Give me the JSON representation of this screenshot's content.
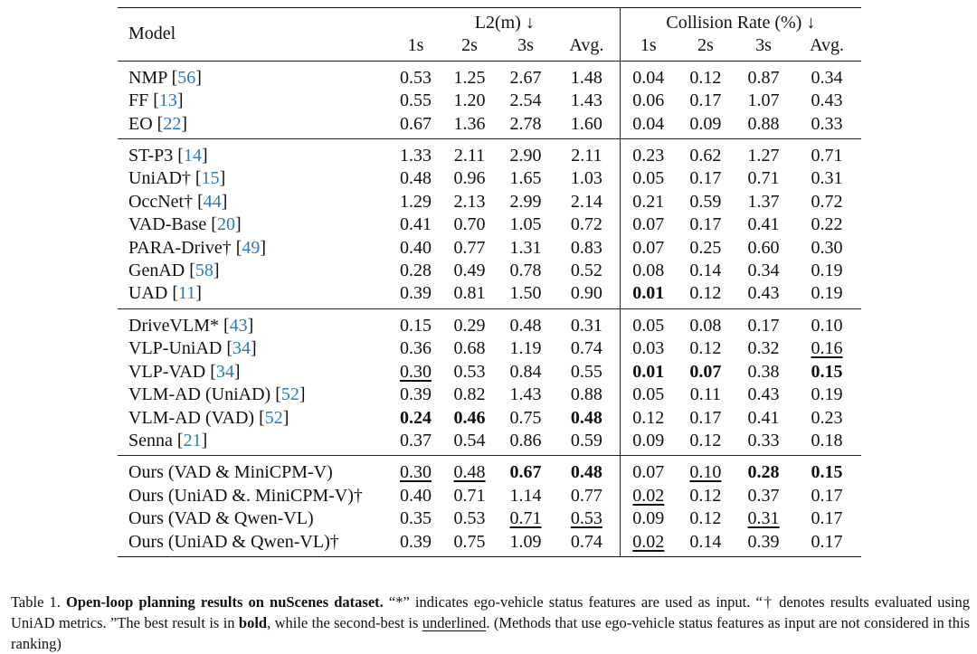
{
  "header": {
    "model": "Model",
    "group_l2": "L2(m) ↓",
    "group_collision": "Collision Rate (%) ↓",
    "sub": [
      "1s",
      "2s",
      "3s",
      "Avg.",
      "1s",
      "2s",
      "3s",
      "Avg."
    ]
  },
  "sections": [
    [
      {
        "name": "NMP",
        "ref": "56",
        "vals": [
          "0.53",
          "1.25",
          "2.67",
          "1.48",
          "0.04",
          "0.12",
          "0.87",
          "0.34"
        ],
        "bold": [],
        "underline": []
      },
      {
        "name": "FF",
        "ref": "13",
        "vals": [
          "0.55",
          "1.20",
          "2.54",
          "1.43",
          "0.06",
          "0.17",
          "1.07",
          "0.43"
        ],
        "bold": [],
        "underline": []
      },
      {
        "name": "EO",
        "ref": "22",
        "vals": [
          "0.67",
          "1.36",
          "2.78",
          "1.60",
          "0.04",
          "0.09",
          "0.88",
          "0.33"
        ],
        "bold": [],
        "underline": []
      }
    ],
    [
      {
        "name": "ST-P3",
        "ref": "14",
        "vals": [
          "1.33",
          "2.11",
          "2.90",
          "2.11",
          "0.23",
          "0.62",
          "1.27",
          "0.71"
        ],
        "bold": [],
        "underline": []
      },
      {
        "name": "UniAD†",
        "ref": "15",
        "vals": [
          "0.48",
          "0.96",
          "1.65",
          "1.03",
          "0.05",
          "0.17",
          "0.71",
          "0.31"
        ],
        "bold": [],
        "underline": []
      },
      {
        "name": "OccNet†",
        "ref": "44",
        "vals": [
          "1.29",
          "2.13",
          "2.99",
          "2.14",
          "0.21",
          "0.59",
          "1.37",
          "0.72"
        ],
        "bold": [],
        "underline": []
      },
      {
        "name": "VAD-Base",
        "ref": "20",
        "vals": [
          "0.41",
          "0.70",
          "1.05",
          "0.72",
          "0.07",
          "0.17",
          "0.41",
          "0.22"
        ],
        "bold": [],
        "underline": []
      },
      {
        "name": "PARA-Drive†",
        "ref": "49",
        "vals": [
          "0.40",
          "0.77",
          "1.31",
          "0.83",
          "0.07",
          "0.25",
          "0.60",
          "0.30"
        ],
        "bold": [],
        "underline": []
      },
      {
        "name": "GenAD",
        "ref": "58",
        "vals": [
          "0.28",
          "0.49",
          "0.78",
          "0.52",
          "0.08",
          "0.14",
          "0.34",
          "0.19"
        ],
        "bold": [],
        "underline": []
      },
      {
        "name": "UAD",
        "ref": "11",
        "vals": [
          "0.39",
          "0.81",
          "1.50",
          "0.90",
          "0.01",
          "0.12",
          "0.43",
          "0.19"
        ],
        "bold": [
          4
        ],
        "underline": []
      }
    ],
    [
      {
        "name": "DriveVLM*",
        "ref": "43",
        "vals": [
          "0.15",
          "0.29",
          "0.48",
          "0.31",
          "0.05",
          "0.08",
          "0.17",
          "0.10"
        ],
        "bold": [],
        "underline": []
      },
      {
        "name": "VLP-UniAD",
        "ref": "34",
        "vals": [
          "0.36",
          "0.68",
          "1.19",
          "0.74",
          "0.03",
          "0.12",
          "0.32",
          "0.16"
        ],
        "bold": [],
        "underline": [
          7
        ]
      },
      {
        "name": "VLP-VAD",
        "ref": "34",
        "vals": [
          "0.30",
          "0.53",
          "0.84",
          "0.55",
          "0.01",
          "0.07",
          "0.38",
          "0.15"
        ],
        "bold": [
          4,
          5,
          7
        ],
        "underline": [
          0
        ]
      },
      {
        "name": "VLM-AD (UniAD)",
        "ref": "52",
        "vals": [
          "0.39",
          "0.82",
          "1.43",
          "0.88",
          "0.05",
          "0.11",
          "0.43",
          "0.19"
        ],
        "bold": [],
        "underline": []
      },
      {
        "name": "VLM-AD (VAD)",
        "ref": "52",
        "vals": [
          "0.24",
          "0.46",
          "0.75",
          "0.48",
          "0.12",
          "0.17",
          "0.41",
          "0.23"
        ],
        "bold": [
          0,
          1,
          3
        ],
        "underline": []
      },
      {
        "name": "Senna",
        "ref": "21",
        "vals": [
          "0.37",
          "0.54",
          "0.86",
          "0.59",
          "0.09",
          "0.12",
          "0.33",
          "0.18"
        ],
        "bold": [],
        "underline": []
      }
    ],
    [
      {
        "name": "Ours (VAD & MiniCPM-V)",
        "ref": "",
        "vals": [
          "0.30",
          "0.48",
          "0.67",
          "0.48",
          "0.07",
          "0.10",
          "0.28",
          "0.15"
        ],
        "bold": [
          2,
          3,
          6,
          7
        ],
        "underline": [
          0,
          1,
          5
        ]
      },
      {
        "name": "Ours (UniAD &. MiniCPM-V)†",
        "ref": "",
        "vals": [
          "0.40",
          "0.71",
          "1.14",
          "0.77",
          "0.02",
          "0.12",
          "0.37",
          "0.17"
        ],
        "bold": [],
        "underline": [
          4
        ]
      },
      {
        "name": "Ours (VAD & Qwen-VL)",
        "ref": "",
        "vals": [
          "0.35",
          "0.53",
          "0.71",
          "0.53",
          "0.09",
          "0.12",
          "0.31",
          "0.17"
        ],
        "bold": [],
        "underline": [
          2,
          3,
          6
        ]
      },
      {
        "name": "Ours (UniAD & Qwen-VL)†",
        "ref": "",
        "vals": [
          "0.39",
          "0.75",
          "1.09",
          "0.74",
          "0.02",
          "0.14",
          "0.39",
          "0.17"
        ],
        "bold": [],
        "underline": [
          4
        ]
      }
    ]
  ],
  "caption": {
    "label": "Table 1.",
    "title": "Open-loop planning results on nuScenes dataset.",
    "text1": " “*” indicates ego-vehicle status features are used as input. “† denotes results evaluated using UniAD metrics. ”The best result is in ",
    "bold_word": "bold",
    "text2": ", while the second-best is ",
    "underline_word": "underlined",
    "text3": ". (Methods that use ego-vehicle status features as input are not considered in this ranking)"
  }
}
